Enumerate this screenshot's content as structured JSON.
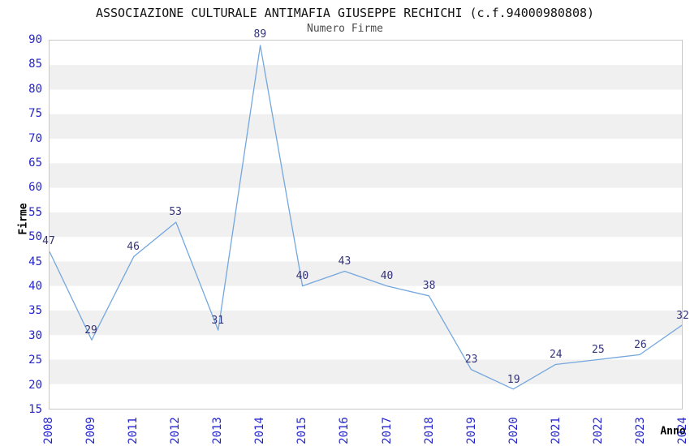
{
  "chart_data": {
    "type": "line",
    "title": "ASSOCIAZIONE CULTURALE ANTIMAFIA GIUSEPPE RECHICHI (c.f.94000980808)",
    "subtitle": "Numero Firme",
    "xlabel": "Anno",
    "ylabel": "Firme",
    "categories": [
      "2008",
      "2009",
      "2011",
      "2012",
      "2013",
      "2014",
      "2015",
      "2016",
      "2017",
      "2018",
      "2019",
      "2020",
      "2021",
      "2022",
      "2023",
      "2024"
    ],
    "values": [
      47,
      29,
      46,
      53,
      31,
      89,
      40,
      43,
      40,
      38,
      23,
      19,
      24,
      25,
      26,
      32
    ],
    "ylim": [
      15,
      90
    ],
    "ytick_step": 5,
    "grid": "alternating-horizontal-bands",
    "legend": "none",
    "data_labels_shown": true,
    "colors": {
      "line": "#74a7de",
      "tick_labels": "#2424cc",
      "data_labels": "#333377",
      "band_gray": "#f0f0f0",
      "plot_border": "#c8c8c8",
      "title": "#111111",
      "subtitle": "#4d4d4d",
      "axis_titles": "#000000",
      "background": "#ffffff"
    }
  }
}
